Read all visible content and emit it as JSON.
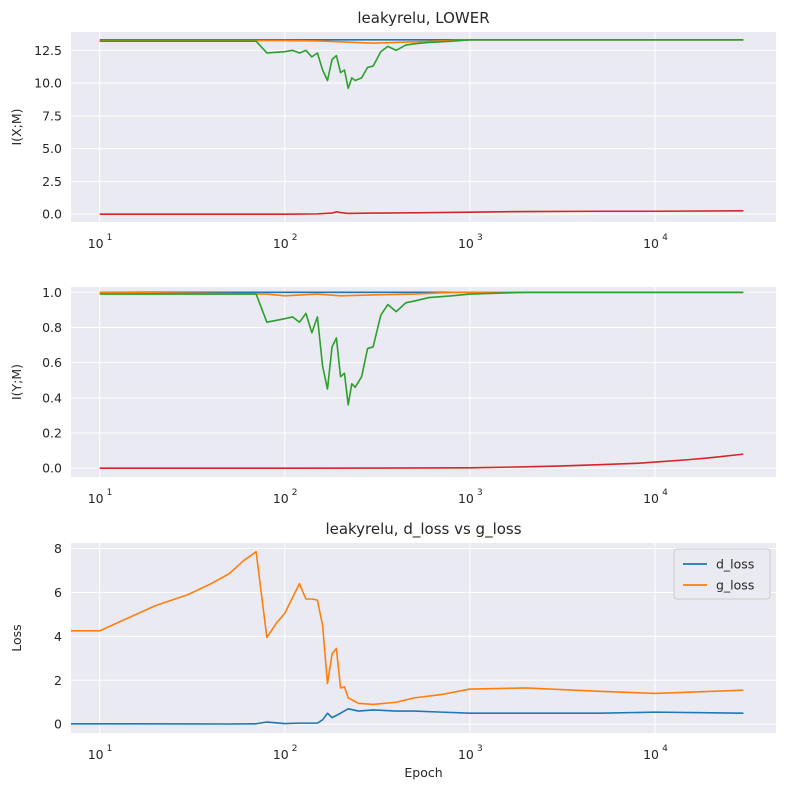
{
  "chart_data": [
    {
      "type": "line",
      "title": "leakyrelu, LOWER",
      "xlabel": "",
      "ylabel": "I(X;M)",
      "xscale": "log",
      "xlim": [
        7,
        45000
      ],
      "ylim": [
        -0.6,
        13.9
      ],
      "yticks": [
        0.0,
        2.5,
        5.0,
        7.5,
        10.0,
        12.5
      ],
      "ytick_labels": [
        "0.0",
        "2.5",
        "5.0",
        "7.5",
        "10.0",
        "12.5"
      ],
      "xticks": [
        10,
        100,
        1000,
        10000
      ],
      "xtick_labels": [
        "10",
        "10",
        "10",
        "10"
      ],
      "xtick_exponents": [
        "1",
        "2",
        "3",
        "4"
      ],
      "grid": true,
      "legend": false,
      "series": [
        {
          "color": "#1f77b4",
          "x": [
            10,
            100,
            1000,
            30000
          ],
          "y": [
            13.3,
            13.3,
            13.3,
            13.3
          ]
        },
        {
          "color": "#ff7f0e",
          "x": [
            10,
            100,
            150,
            200,
            300,
            500,
            800,
            1000,
            30000
          ],
          "y": [
            13.25,
            13.25,
            13.22,
            13.15,
            13.05,
            13.15,
            13.25,
            13.3,
            13.3
          ]
        },
        {
          "color": "#2ca02c",
          "x": [
            10,
            60,
            70,
            80,
            100,
            110,
            120,
            130,
            140,
            150,
            160,
            170,
            180,
            190,
            200,
            210,
            220,
            230,
            240,
            260,
            280,
            300,
            330,
            360,
            400,
            450,
            500,
            600,
            800,
            1000,
            2000,
            30000
          ],
          "y": [
            13.2,
            13.2,
            13.2,
            12.3,
            12.4,
            12.5,
            12.3,
            12.5,
            12.0,
            12.3,
            11.0,
            10.2,
            11.8,
            12.1,
            10.8,
            11.0,
            9.6,
            10.4,
            10.2,
            10.4,
            11.2,
            11.3,
            12.4,
            12.8,
            12.5,
            12.9,
            13.0,
            13.1,
            13.2,
            13.3,
            13.3,
            13.3
          ]
        },
        {
          "color": "#d62728",
          "x": [
            10,
            100,
            150,
            180,
            190,
            200,
            220,
            300,
            500,
            1000,
            2000,
            5000,
            10000,
            30000
          ],
          "y": [
            0.0,
            0.0,
            0.02,
            0.08,
            0.18,
            0.12,
            0.05,
            0.08,
            0.1,
            0.15,
            0.2,
            0.22,
            0.22,
            0.25
          ]
        }
      ]
    },
    {
      "type": "line",
      "title": "",
      "xlabel": "",
      "ylabel": "I(Y;M)",
      "xscale": "log",
      "xlim": [
        7,
        45000
      ],
      "ylim": [
        -0.05,
        1.03
      ],
      "yticks": [
        0.0,
        0.2,
        0.4,
        0.6,
        0.8,
        1.0
      ],
      "ytick_labels": [
        "0.0",
        "0.2",
        "0.4",
        "0.6",
        "0.8",
        "1.0"
      ],
      "xticks": [
        10,
        100,
        1000,
        10000
      ],
      "xtick_labels": [
        "10",
        "10",
        "10",
        "10"
      ],
      "xtick_exponents": [
        "1",
        "2",
        "3",
        "4"
      ],
      "grid": true,
      "legend": false,
      "series": [
        {
          "color": "#1f77b4",
          "x": [
            10,
            100,
            1000,
            30000
          ],
          "y": [
            1.0,
            1.0,
            1.0,
            1.0
          ]
        },
        {
          "color": "#ff7f0e",
          "x": [
            10,
            80,
            100,
            150,
            200,
            300,
            500,
            800,
            1000,
            30000
          ],
          "y": [
            1.0,
            0.99,
            0.98,
            0.99,
            0.98,
            0.985,
            0.99,
            1.0,
            1.0,
            1.0
          ]
        },
        {
          "color": "#2ca02c",
          "x": [
            10,
            40,
            70,
            80,
            100,
            110,
            120,
            130,
            140,
            150,
            160,
            170,
            180,
            190,
            200,
            210,
            220,
            230,
            240,
            260,
            280,
            300,
            330,
            360,
            400,
            450,
            500,
            600,
            800,
            1000,
            2000,
            30000
          ],
          "y": [
            0.99,
            0.99,
            0.99,
            0.83,
            0.85,
            0.86,
            0.83,
            0.88,
            0.77,
            0.86,
            0.58,
            0.45,
            0.69,
            0.74,
            0.52,
            0.54,
            0.36,
            0.48,
            0.46,
            0.52,
            0.68,
            0.69,
            0.87,
            0.93,
            0.89,
            0.94,
            0.95,
            0.97,
            0.98,
            0.99,
            1.0,
            1.0
          ]
        },
        {
          "color": "#d62728",
          "x": [
            10,
            100,
            1000,
            2000,
            3000,
            5000,
            8000,
            10000,
            15000,
            20000,
            30000
          ],
          "y": [
            0.0,
            0.0,
            0.002,
            0.008,
            0.012,
            0.02,
            0.028,
            0.035,
            0.048,
            0.06,
            0.08
          ]
        }
      ]
    },
    {
      "type": "line",
      "title": "leakyrelu, d_loss vs g_loss",
      "xlabel": "Epoch",
      "ylabel": "Loss",
      "xscale": "log",
      "xlim": [
        7,
        45000
      ],
      "ylim": [
        -0.4,
        8.25
      ],
      "yticks": [
        0,
        2,
        4,
        6,
        8
      ],
      "ytick_labels": [
        "0",
        "2",
        "4",
        "6",
        "8"
      ],
      "xticks": [
        10,
        100,
        1000,
        10000
      ],
      "xtick_labels": [
        "10",
        "10",
        "10",
        "10"
      ],
      "xtick_exponents": [
        "1",
        "2",
        "3",
        "4"
      ],
      "grid": true,
      "legend": true,
      "legend_position": "top-right",
      "series": [
        {
          "name": "d_loss",
          "color": "#1f77b4",
          "x": [
            7,
            10,
            50,
            70,
            80,
            100,
            120,
            150,
            160,
            170,
            180,
            200,
            220,
            250,
            300,
            400,
            500,
            700,
            1000,
            2000,
            5000,
            10000,
            30000
          ],
          "y": [
            0.02,
            0.02,
            0.01,
            0.02,
            0.1,
            0.03,
            0.05,
            0.05,
            0.2,
            0.5,
            0.3,
            0.5,
            0.7,
            0.6,
            0.65,
            0.6,
            0.6,
            0.55,
            0.5,
            0.5,
            0.5,
            0.55,
            0.5
          ]
        },
        {
          "name": "g_loss",
          "color": "#ff7f0e",
          "x": [
            7,
            10,
            20,
            30,
            40,
            50,
            60,
            70,
            80,
            90,
            100,
            120,
            130,
            140,
            150,
            160,
            170,
            180,
            190,
            200,
            210,
            220,
            250,
            300,
            400,
            500,
            700,
            1000,
            2000,
            5000,
            10000,
            30000
          ],
          "y": [
            4.25,
            4.25,
            5.4,
            5.9,
            6.4,
            6.85,
            7.45,
            7.85,
            3.95,
            4.6,
            5.05,
            6.4,
            5.7,
            5.7,
            5.65,
            4.5,
            1.85,
            3.2,
            3.45,
            1.65,
            1.7,
            1.2,
            0.95,
            0.9,
            1.0,
            1.2,
            1.35,
            1.6,
            1.65,
            1.5,
            1.4,
            1.55
          ]
        }
      ]
    }
  ]
}
